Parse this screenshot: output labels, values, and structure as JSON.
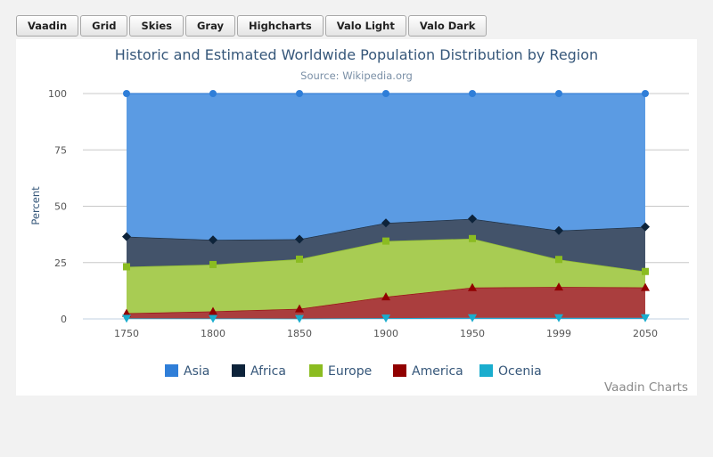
{
  "theme_buttons": [
    "Vaadin",
    "Grid",
    "Skies",
    "Gray",
    "Highcharts",
    "Valo Light",
    "Valo Dark"
  ],
  "credit": "Vaadin Charts",
  "colors": {
    "Asia": "#5b9be3",
    "Africa": "#43536a",
    "Europe": "#a8cc53",
    "America": "#aa3e3e",
    "Ocenia": "#2ea7d8"
  },
  "legend_swatches": {
    "Asia": "#2f7ed8",
    "Africa": "#0d233a",
    "Europe": "#8bbc21",
    "America": "#910000",
    "Ocenia": "#1aadce"
  },
  "chart_data": {
    "type": "area",
    "stacking": "percent",
    "title": "Historic and Estimated Worldwide Population Distribution by Region",
    "subtitle": "Source: Wikipedia.org",
    "ylabel": "Percent",
    "xlabel": "",
    "categories": [
      "1750",
      "1800",
      "1850",
      "1900",
      "1950",
      "1999",
      "2050"
    ],
    "ylim": [
      0,
      100
    ],
    "yticks": [
      0,
      25,
      50,
      75,
      100
    ],
    "grid": true,
    "legend_position": "bottom",
    "series": [
      {
        "name": "Asia",
        "values": [
          502,
          635,
          809,
          947,
          1402,
          3634,
          5268
        ],
        "marker": "circle"
      },
      {
        "name": "Africa",
        "values": [
          106,
          107,
          111,
          133,
          221,
          767,
          1766
        ],
        "marker": "diamond"
      },
      {
        "name": "Europe",
        "values": [
          163,
          203,
          276,
          408,
          547,
          729,
          628
        ],
        "marker": "square"
      },
      {
        "name": "America",
        "values": [
          18,
          31,
          54,
          156,
          339,
          818,
          1201
        ],
        "marker": "triangle"
      },
      {
        "name": "Ocenia",
        "values": [
          2,
          2,
          2,
          6,
          13,
          30,
          46
        ],
        "marker": "triangle-down"
      }
    ]
  }
}
